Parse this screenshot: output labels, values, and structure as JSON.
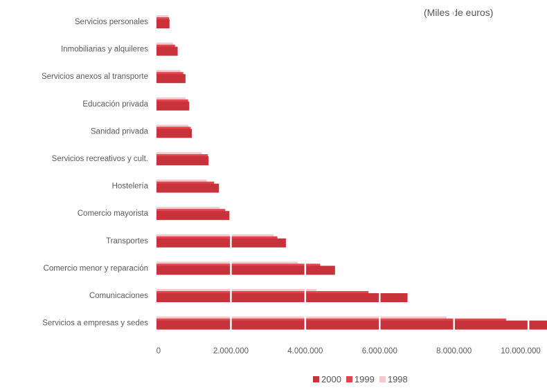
{
  "unit_label": "(Miles de euros)",
  "colors": {
    "2000": "#c8323a",
    "1999": "#e0444c",
    "1998": "#f3c9cd"
  },
  "chart_data": {
    "type": "bar",
    "orientation": "horizontal",
    "categories": [
      "Servicios personales",
      "Inmobiliarias y alquileres",
      "Servicios anexos al transporte",
      "Educación privada",
      "Sanidad privada",
      "Servicios recreativos y cult.",
      "Hostelería",
      "Comercio mayorista",
      "Transportes",
      "Comercio menor y reparación",
      "Comunicaciones",
      "Servicios a empresas y sedes"
    ],
    "series": [
      {
        "name": "2000",
        "values": [
          350000,
          570000,
          780000,
          880000,
          950000,
          1400000,
          1680000,
          1960000,
          3480000,
          4800000,
          6750000,
          10500000
        ]
      },
      {
        "name": "1999",
        "values": [
          340000,
          500000,
          720000,
          850000,
          920000,
          1380000,
          1550000,
          1850000,
          3250000,
          4400000,
          5700000,
          9400000
        ]
      },
      {
        "name": "1998",
        "values": [
          320000,
          450000,
          650000,
          780000,
          860000,
          1220000,
          1350000,
          1700000,
          3150000,
          3800000,
          4300000,
          7800000
        ]
      }
    ],
    "x_ticks": [
      "0",
      "2.000.000",
      "4.000.000",
      "6.000.000",
      "8.000.000",
      "10.000.000"
    ],
    "xlim": [
      0,
      10500000
    ],
    "legend_position": "bottom-right",
    "grid": false
  }
}
